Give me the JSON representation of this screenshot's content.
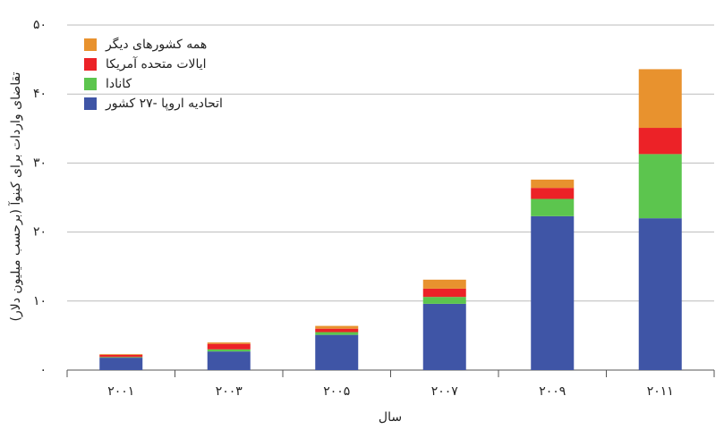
{
  "chart_data": {
    "type": "bar",
    "stacked": true,
    "x_label": "سال",
    "y_label": "تقاضای واردات برای کینوآ (برحسب میلیون دلار)",
    "categories": [
      "۲۰۰۱",
      "۲۰۰۳",
      "۲۰۰۵",
      "۲۰۰۷",
      "۲۰۰۹",
      "۲۰۱۱"
    ],
    "series": [
      {
        "name": "اتحادیه اروپا -۲۷ کشور",
        "color": "#3f55a6",
        "values": [
          1.8,
          2.7,
          5.1,
          9.6,
          22.3,
          22.0
        ]
      },
      {
        "name": "کانادا",
        "color": "#5cc54e",
        "values": [
          0.1,
          0.3,
          0.4,
          1.0,
          2.5,
          9.3
        ]
      },
      {
        "name": "ایالات متحده آمریکا",
        "color": "#ec2227",
        "values": [
          0.3,
          0.8,
          0.5,
          1.2,
          1.6,
          3.8
        ]
      },
      {
        "name": "همه کشورهای دیگر",
        "color": "#e8922e",
        "values": [
          0.1,
          0.2,
          0.4,
          1.3,
          1.2,
          8.5
        ]
      }
    ],
    "ylim": [
      0,
      50
    ],
    "yticks": [
      {
        "value": 0,
        "label": "۰"
      },
      {
        "value": 10,
        "label": "۱۰"
      },
      {
        "value": 20,
        "label": "۲۰"
      },
      {
        "value": 30,
        "label": "۳۰"
      },
      {
        "value": 40,
        "label": "۴۰"
      },
      {
        "value": 50,
        "label": "۵۰"
      }
    ],
    "grid": true,
    "legend": "top-left"
  }
}
